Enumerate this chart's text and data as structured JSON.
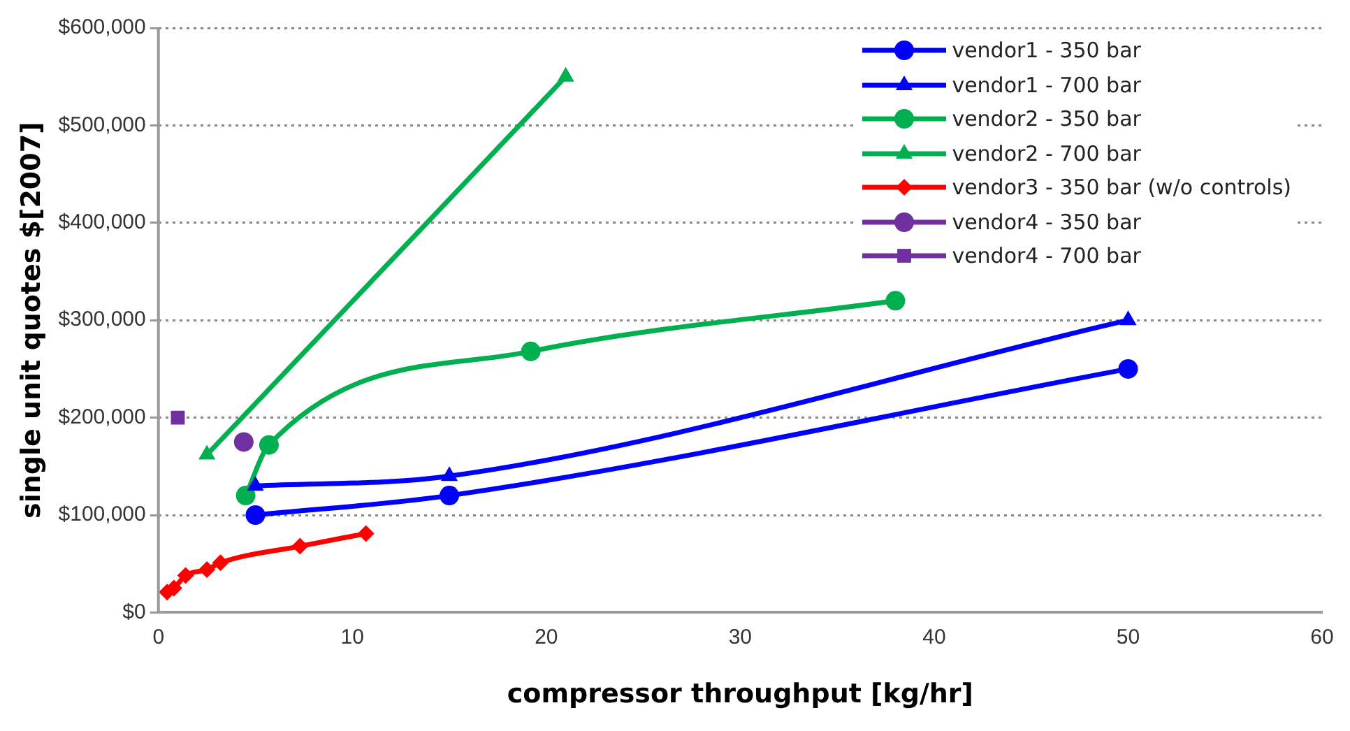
{
  "chart_data": {
    "type": "line",
    "xlabel": "compressor throughput [kg/hr]",
    "ylabel": "single unit quotes $[2007]",
    "xlim": [
      0,
      60
    ],
    "xticks": [
      0,
      10,
      20,
      30,
      40,
      50,
      60
    ],
    "ylim": [
      0,
      600000
    ],
    "yticks": [
      {
        "value": 0,
        "label": "$0"
      },
      {
        "value": 100000,
        "label": "$100,000"
      },
      {
        "value": 200000,
        "label": "$200,000"
      },
      {
        "value": 300000,
        "label": "$300,000"
      },
      {
        "value": 400000,
        "label": "$400,000"
      },
      {
        "value": 500000,
        "label": "$500,000"
      },
      {
        "value": 600000,
        "label": "$600,000"
      }
    ],
    "grid": "y",
    "legend": "top right",
    "line_style": "solid",
    "series": [
      {
        "name": "vendor1 - 350 bar",
        "color": "#0000ff",
        "marker": "circle",
        "x": [
          5,
          15,
          50
        ],
        "values": [
          100000,
          120000,
          250000
        ]
      },
      {
        "name": "vendor1 - 700 bar",
        "color": "#0000ff",
        "marker": "triangle",
        "x": [
          5,
          15,
          50
        ],
        "values": [
          130000,
          140000,
          300000
        ]
      },
      {
        "name": "vendor2 - 350 bar",
        "color": "#00b050",
        "marker": "circle",
        "x": [
          4.5,
          5.7,
          19.2,
          38
        ],
        "values": [
          120000,
          172000,
          268000,
          320000
        ]
      },
      {
        "name": "vendor2 - 700 bar",
        "color": "#00b050",
        "marker": "triangle",
        "x": [
          2.5,
          21
        ],
        "values": [
          162000,
          550000
        ]
      },
      {
        "name": "vendor3 - 350 bar (w/o controls)",
        "color": "#ff0000",
        "marker": "diamond",
        "x": [
          0.45,
          0.8,
          1.4,
          2.5,
          3.2,
          7.3,
          10.7
        ],
        "values": [
          21000,
          25000,
          38000,
          44000,
          51000,
          68000,
          81000
        ]
      },
      {
        "name": "vendor4 - 350 bar",
        "color": "#7030a0",
        "marker": "circle",
        "x": [
          4.4
        ],
        "values": [
          175000
        ]
      },
      {
        "name": "vendor4 - 700 bar",
        "color": "#7030a0",
        "marker": "square",
        "x": [
          1
        ],
        "values": [
          200000
        ]
      }
    ]
  }
}
